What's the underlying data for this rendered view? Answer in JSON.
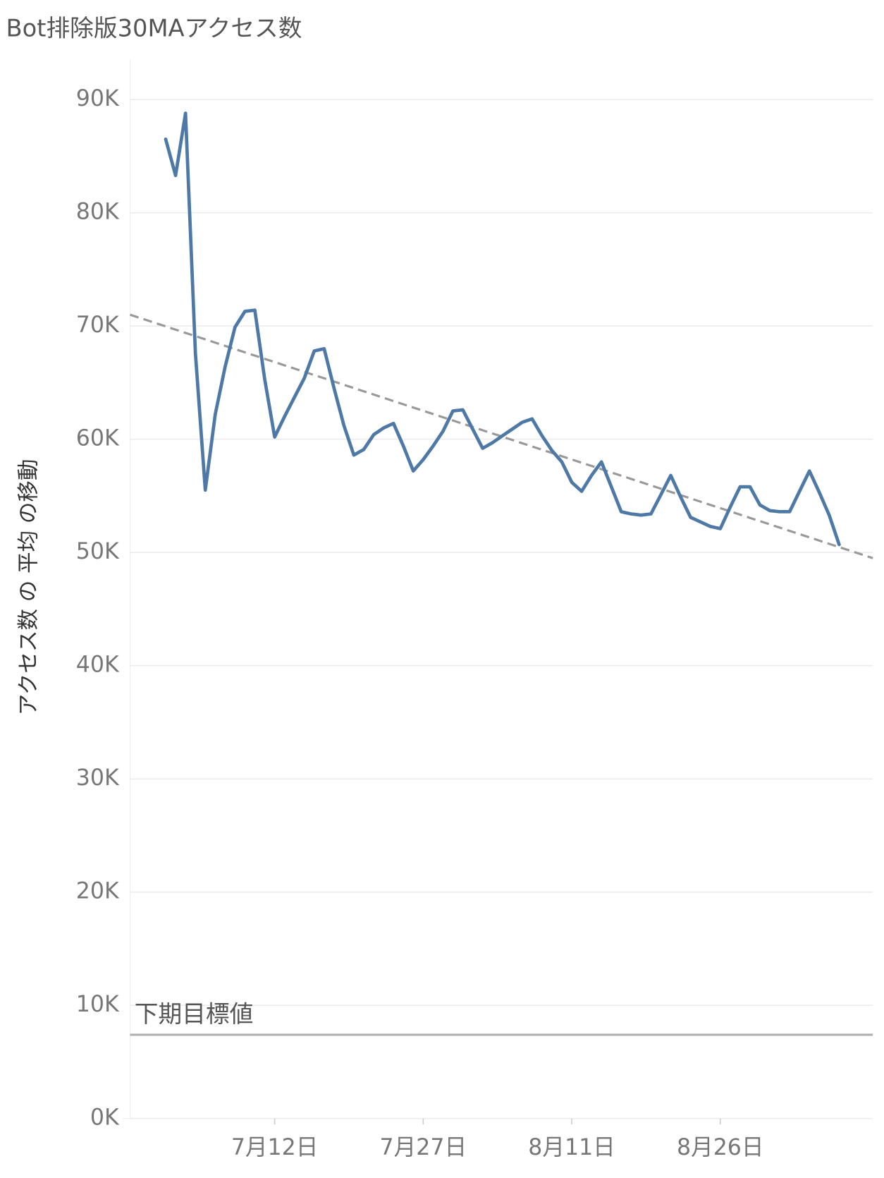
{
  "chart_data": {
    "type": "line",
    "title": "Bot排除版30MAアクセス数",
    "y_label": "アクセス数 の 平均 の移動",
    "categories": [
      null,
      null,
      null,
      null,
      null,
      null,
      null,
      null,
      null,
      null,
      null,
      "7月12日",
      null,
      null,
      null,
      null,
      null,
      null,
      null,
      null,
      null,
      null,
      null,
      null,
      null,
      null,
      "7月27日",
      null,
      null,
      null,
      null,
      null,
      null,
      null,
      null,
      null,
      null,
      null,
      null,
      null,
      null,
      "8月11日",
      null,
      null,
      null,
      null,
      null,
      null,
      null,
      null,
      null,
      null,
      null,
      null,
      null,
      null,
      "8月26日",
      null,
      null,
      null,
      null,
      null,
      null,
      null,
      null,
      null,
      null,
      null,
      null
    ],
    "values": [
      86500,
      83300,
      88800,
      67600,
      55500,
      62200,
      66400,
      69900,
      71300,
      71400,
      65300,
      60200,
      62000,
      63700,
      65400,
      67800,
      68000,
      64500,
      61200,
      58600,
      59100,
      60400,
      61000,
      61400,
      59400,
      57200,
      58200,
      59400,
      60700,
      62500,
      62600,
      60900,
      59200,
      59700,
      60300,
      60900,
      61500,
      61800,
      60300,
      59000,
      58000,
      56200,
      55400,
      56800,
      58000,
      55800,
      53600,
      53400,
      53300,
      53400,
      55100,
      56800,
      54900,
      53100,
      52700,
      52300,
      52100,
      54000,
      55800,
      55800,
      54200,
      53700,
      53600,
      53600,
      55400,
      57200,
      55300,
      53300,
      50700
    ],
    "color": "#4e79a7",
    "ylim": [
      0,
      93500
    ],
    "yticks": [
      {
        "value": 0,
        "label": "0K"
      },
      {
        "value": 10000,
        "label": "10K"
      },
      {
        "value": 20000,
        "label": "20K"
      },
      {
        "value": 30000,
        "label": "30K"
      },
      {
        "value": 40000,
        "label": "40K"
      },
      {
        "value": 50000,
        "label": "50K"
      },
      {
        "value": 60000,
        "label": "60K"
      },
      {
        "value": 70000,
        "label": "70K"
      },
      {
        "value": 80000,
        "label": "80K"
      },
      {
        "value": 90000,
        "label": "90K"
      }
    ],
    "grid": true,
    "trend": {
      "start": 71000,
      "end": 49500,
      "color": "#999999"
    },
    "reference_line": {
      "label": "下期目標値",
      "value": 7400,
      "color": "#b0b0b0"
    }
  }
}
